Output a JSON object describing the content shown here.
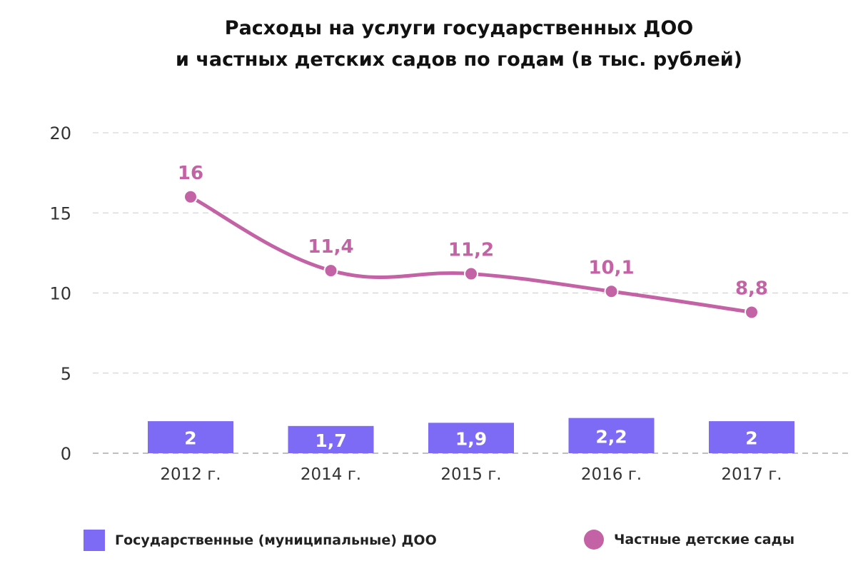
{
  "chart_data": {
    "type": "bar+line",
    "title_lines": [
      "Расходы на услуги государственных ДОО",
      "и частных детских садов по годам (в тыс. рублей)"
    ],
    "categories": [
      "2012 г.",
      "2014 г.",
      "2015 г.",
      "2016 г.",
      "2017 г."
    ],
    "ylim": [
      0,
      20
    ],
    "yticks": [
      0,
      5,
      10,
      15,
      20
    ],
    "grid": true,
    "legend_position": "bottom",
    "series": [
      {
        "name": "Государственные (муниципальные) ДОО",
        "type": "bar",
        "color": "#7d6af5",
        "values": [
          2,
          1.7,
          1.9,
          2.2,
          2
        ],
        "labels": [
          "2",
          "1,7",
          "1,9",
          "2,2",
          "2"
        ]
      },
      {
        "name": "Частные детские сады",
        "type": "line",
        "color": "#c462a6",
        "values": [
          16,
          11.4,
          11.2,
          10.1,
          8.8
        ],
        "labels": [
          "16",
          "11,4",
          "11,2",
          "10,1",
          "8,8"
        ]
      }
    ]
  }
}
